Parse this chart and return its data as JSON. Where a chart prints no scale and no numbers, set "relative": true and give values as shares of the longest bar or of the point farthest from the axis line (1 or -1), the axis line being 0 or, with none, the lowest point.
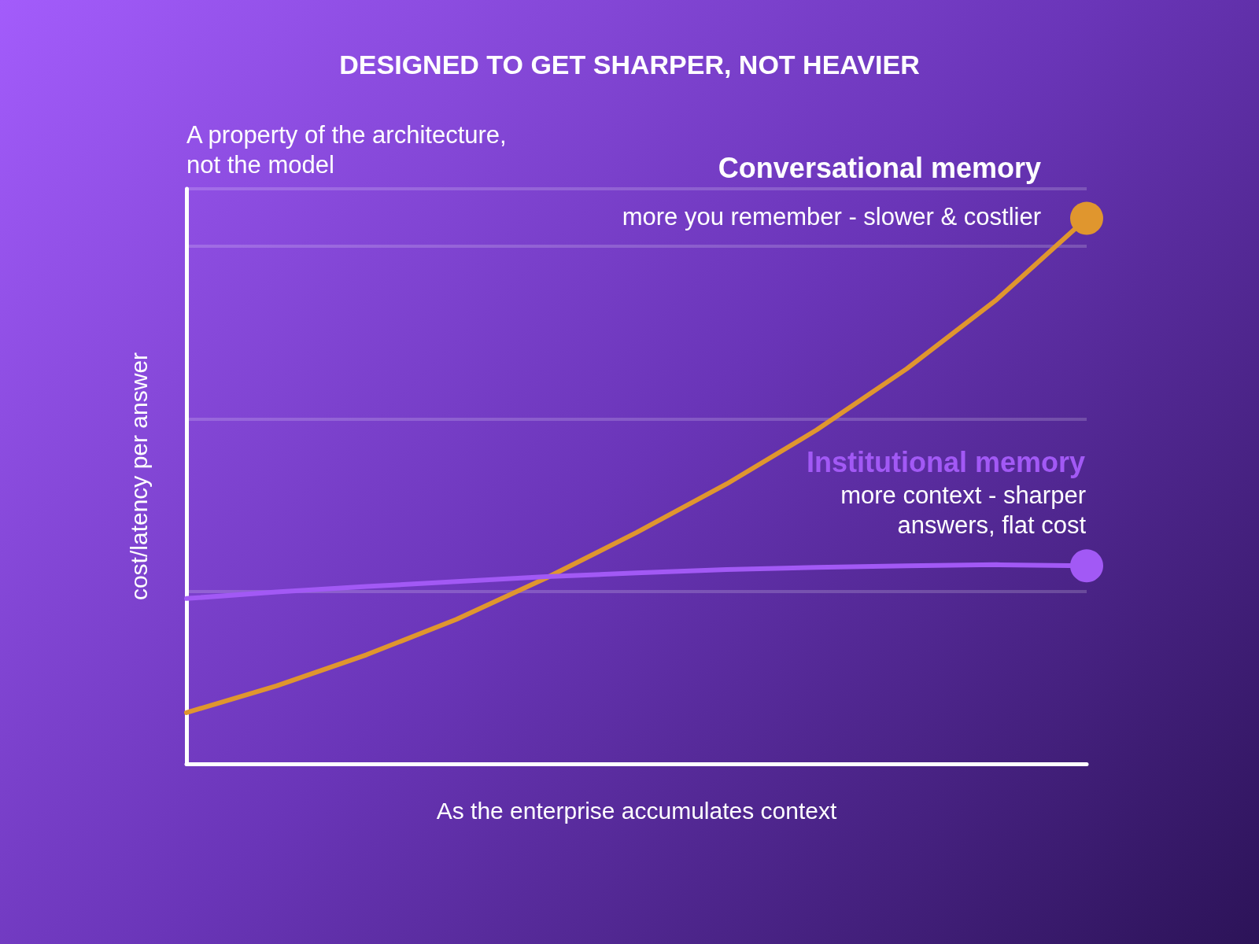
{
  "chart_data": {
    "type": "line",
    "title": "DESIGNED TO GET SHARPER, NOT HEAVIER",
    "xlabel": "As the enterprise accumulates context",
    "ylabel": "cost/latency per answer",
    "relative": true,
    "grid": "y",
    "legend": false,
    "line_style": "solid",
    "categories": [
      null,
      null,
      null,
      null,
      null,
      null,
      null,
      null,
      null,
      null,
      null
    ],
    "series": [
      {
        "name": "Conversational memory",
        "color": "#e0962e",
        "values": [
          0.094,
          0.143,
          0.2,
          0.265,
          0.341,
          0.424,
          0.513,
          0.612,
          0.724,
          0.851,
          1
        ]
      },
      {
        "name": "Institutional memory",
        "color": "#a259f5",
        "values": [
          0.303,
          0.315,
          0.325,
          0.334,
          0.343,
          0.35,
          0.356,
          0.36,
          0.363,
          0.365,
          0.363
        ]
      }
    ],
    "annotations": [
      "A property of the architecture,\nnot the model",
      "more you remember - slower & costlier",
      "more context - sharper\nanswers, flat cost"
    ]
  }
}
